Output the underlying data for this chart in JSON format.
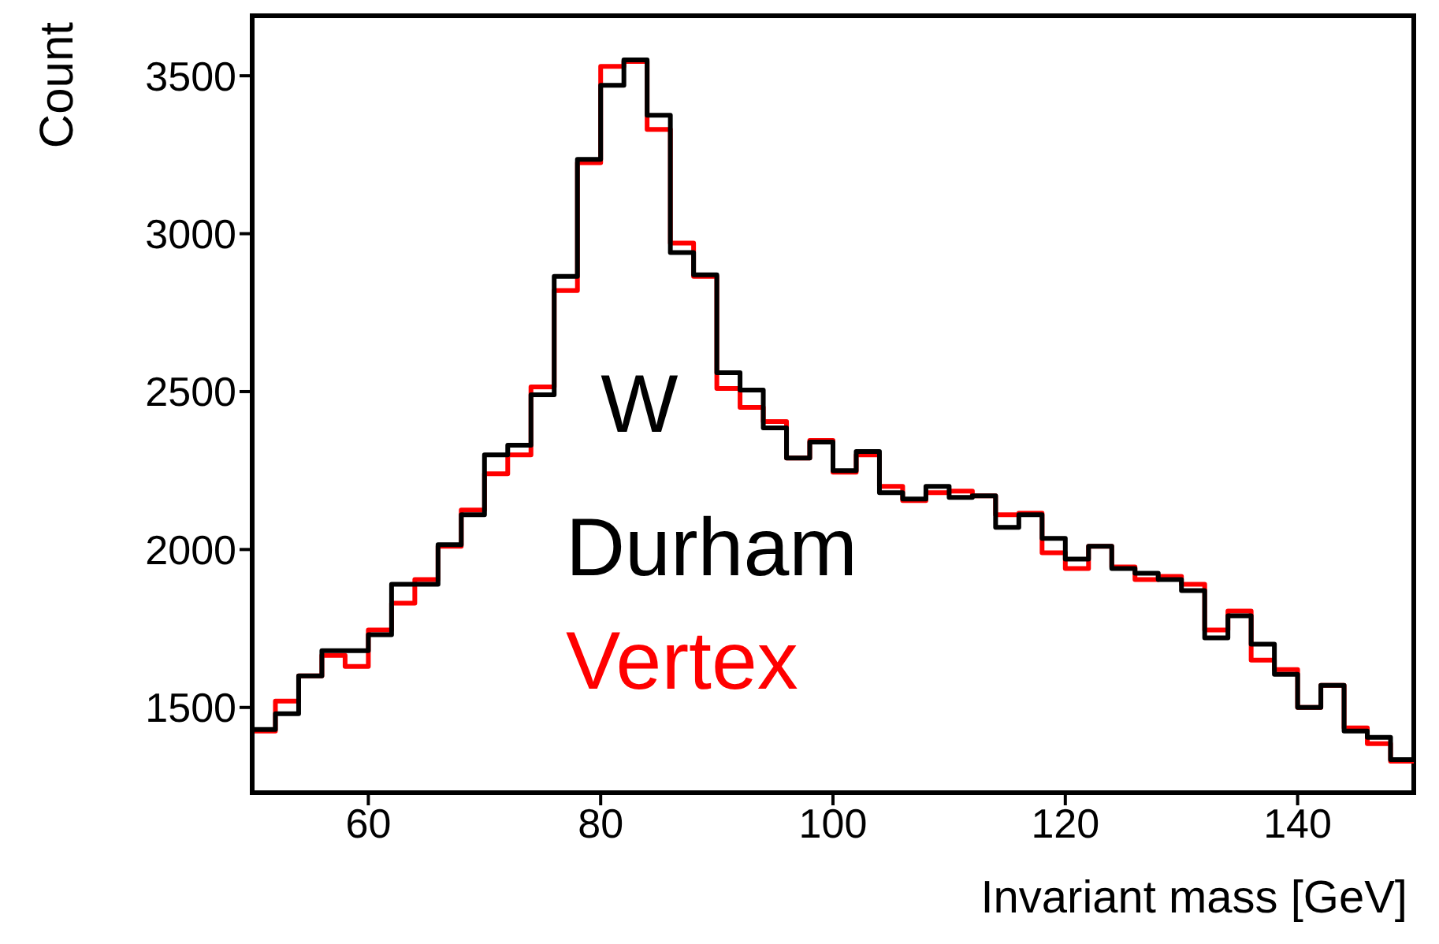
{
  "chart_data": {
    "type": "histogram",
    "xlabel": "Invariant mass [GeV]",
    "ylabel": "Count",
    "bins": [
      50,
      52,
      54,
      56,
      58,
      60,
      62,
      64,
      66,
      68,
      70,
      72,
      74,
      76,
      78,
      80,
      82,
      84,
      86,
      88,
      90,
      92,
      94,
      96,
      98,
      100,
      102,
      104,
      106,
      108,
      110,
      112,
      114,
      116,
      118,
      120,
      122,
      124,
      126,
      128,
      130,
      132,
      134,
      136,
      138,
      140,
      142,
      144,
      146,
      148,
      150
    ],
    "series": [
      {
        "name": "Durham",
        "color": "#000000",
        "values": [
          1430,
          1480,
          1600,
          1680,
          1680,
          1730,
          1890,
          1890,
          2015,
          2110,
          2300,
          2330,
          2490,
          2865,
          3235,
          3470,
          3550,
          3375,
          2940,
          2870,
          2560,
          2505,
          2385,
          2290,
          2340,
          2250,
          2310,
          2180,
          2160,
          2200,
          2165,
          2170,
          2070,
          2110,
          2035,
          1970,
          2010,
          1940,
          1925,
          1905,
          1870,
          1720,
          1790,
          1700,
          1605,
          1500,
          1570,
          1425,
          1405,
          1335
        ]
      },
      {
        "name": "Vertex",
        "color": "#ff0000",
        "values": [
          1425,
          1520,
          1600,
          1665,
          1630,
          1745,
          1830,
          1905,
          2010,
          2125,
          2240,
          2300,
          2515,
          2820,
          3225,
          3530,
          3545,
          3330,
          2970,
          2865,
          2510,
          2450,
          2405,
          2290,
          2345,
          2245,
          2300,
          2200,
          2155,
          2180,
          2185,
          2170,
          2110,
          2115,
          1990,
          1940,
          2010,
          1945,
          1905,
          1915,
          1890,
          1745,
          1805,
          1650,
          1620,
          1500,
          1570,
          1435,
          1385,
          1330
        ]
      }
    ],
    "xlim": [
      50,
      150
    ],
    "xticks": [
      60,
      80,
      100,
      120,
      140
    ],
    "ylim": [
      1230,
      3690
    ],
    "yticks": [
      1500,
      2000,
      2500,
      3000,
      3500
    ],
    "annotations": [
      "W"
    ],
    "legend": "center"
  }
}
